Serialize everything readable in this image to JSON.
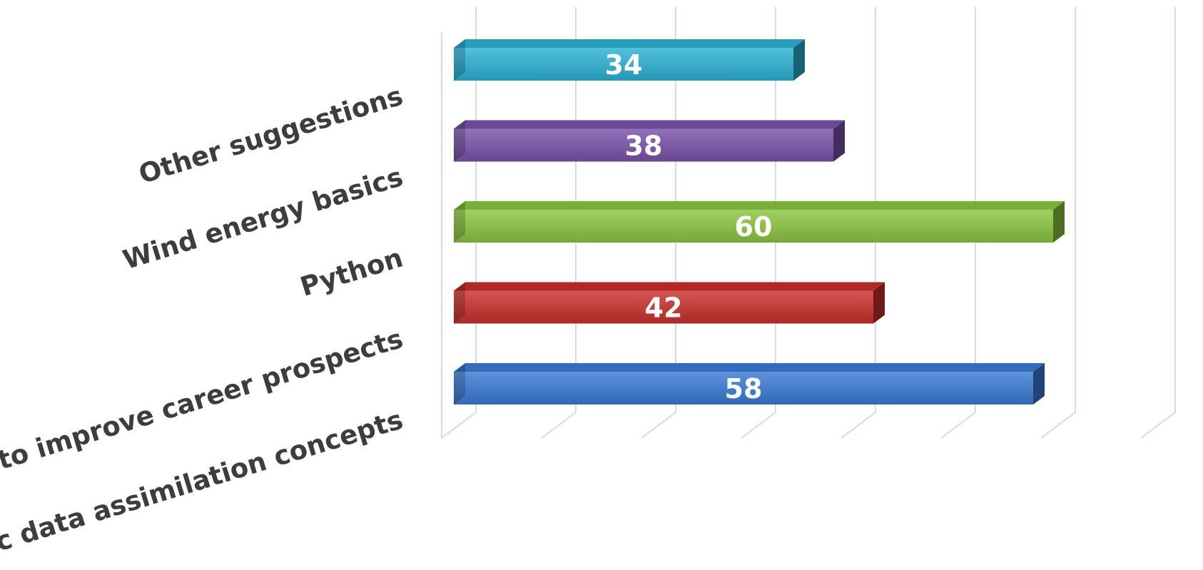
{
  "chart_data": {
    "type": "bar",
    "orientation": "horizontal",
    "style": "3d",
    "categories": [
      "Basic data assimilation concepts",
      "How to improve career prospects",
      "Python",
      "Wind energy basics",
      "Other suggestions"
    ],
    "values": [
      58,
      42,
      60,
      38,
      34
    ],
    "colors": [
      "#3a7bd5",
      "#c9302c",
      "#8cc63f",
      "#7b52ab",
      "#2bb3d6"
    ],
    "xlim": [
      0,
      70
    ],
    "grid": true,
    "data_labels": true,
    "title": "",
    "xlabel": "",
    "ylabel": ""
  }
}
